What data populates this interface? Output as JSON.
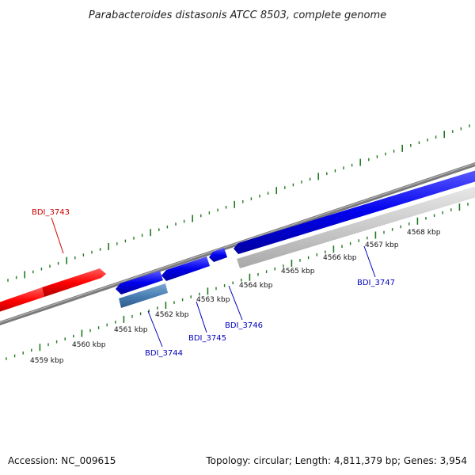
{
  "title": "Parabacteroides distasonis ATCC 8503, complete genome",
  "footer": {
    "accession": "Accession: NC_009615",
    "topology": "Topology: circular; Length: 4,811,379 bp; Genes: 3,954"
  },
  "colors": {
    "backbone": "#8a8a8a",
    "tick": "#1e7a1e",
    "gene_forward": "#ff0000",
    "gene_reverse": "#0000ee",
    "gene_highlight": "#4a7fb5",
    "gene_other": "#c8c8c8",
    "label_red": "#cc0000",
    "label_blue": "#0000bb"
  },
  "scale_labels": [
    "4559 kbp",
    "4560 kbp",
    "4561 kbp",
    "4562 kbp",
    "4563 kbp",
    "4564 kbp",
    "4565 kbp",
    "4566 kbp",
    "4567 kbp",
    "4568 kbp"
  ],
  "genes": [
    {
      "id": "BDI_3743",
      "strand": "forward",
      "color": "red"
    },
    {
      "id": "BDI_3744",
      "strand": "reverse",
      "color": "steelblue"
    },
    {
      "id": "BDI_3745",
      "strand": "reverse",
      "color": "blue"
    },
    {
      "id": "BDI_3746",
      "strand": "reverse",
      "color": "blue"
    },
    {
      "id": "BDI_3747",
      "strand": "reverse",
      "color": "blue"
    }
  ]
}
